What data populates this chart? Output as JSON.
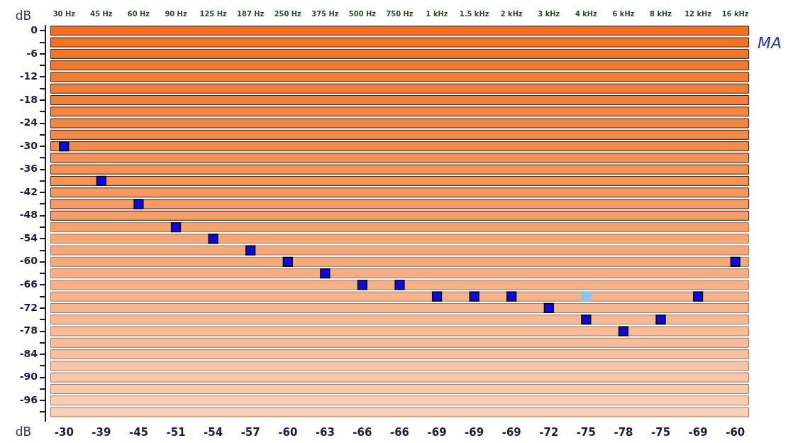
{
  "chart_data": {
    "type": "scatter",
    "ylabel": "dB",
    "categories": [
      "30 Hz",
      "45 Hz",
      "60 Hz",
      "90 Hz",
      "125 Hz",
      "187 Hz",
      "250 Hz",
      "375 Hz",
      "500 Hz",
      "750 Hz",
      "1 kHz",
      "1.5 kHz",
      "2 kHz",
      "3 kHz",
      "4 kHz",
      "6 kHz",
      "8 kHz",
      "12 kHz",
      "16 kHz"
    ],
    "series": [
      {
        "color": "#0a0ae6",
        "values": [
          -30,
          -39,
          -45,
          -51,
          -54,
          -57,
          -60,
          -63,
          -66,
          -66,
          -69,
          -69,
          -69,
          -72,
          -75,
          -78,
          -75,
          -69,
          -60
        ],
        "data_labels": true
      },
      {
        "color": "#88c4f0",
        "values": [
          null,
          null,
          null,
          null,
          null,
          null,
          null,
          null,
          null,
          null,
          null,
          null,
          null,
          null,
          -69,
          null,
          null,
          null,
          null
        ]
      }
    ],
    "ylim": [
      -101.5,
      1.5
    ],
    "yticks": [
      0,
      {
        "value": -3,
        "label": null
      },
      -6,
      {
        "value": -9,
        "label": null
      },
      -12,
      {
        "value": -15,
        "label": null
      },
      -18,
      {
        "value": -21,
        "label": null
      },
      -24,
      {
        "value": -27,
        "label": null
      },
      -30,
      {
        "value": -33,
        "label": null
      },
      -36,
      {
        "value": -39,
        "label": null
      },
      -42,
      {
        "value": -45,
        "label": null
      },
      -48,
      {
        "value": -51,
        "label": null
      },
      -54,
      {
        "value": -57,
        "label": null
      },
      -60,
      {
        "value": -63,
        "label": null
      },
      -66,
      {
        "value": -69,
        "label": null
      },
      -72,
      {
        "value": -75,
        "label": null
      },
      -78,
      {
        "value": -81,
        "label": null
      },
      -84,
      {
        "value": -87,
        "label": null
      },
      -90,
      {
        "value": -93,
        "label": null
      },
      -96,
      {
        "value": -99,
        "label": null
      }
    ],
    "marker": "square",
    "legend": false,
    "bands": [
      {
        "axis": "y",
        "from": -1.2,
        "to": 1.2,
        "color": "#f07020"
      },
      {
        "axis": "y",
        "from": -4.2,
        "to": -1.8,
        "color": "#f07325"
      },
      {
        "axis": "y",
        "from": -7.2,
        "to": -4.8,
        "color": "#f07629"
      },
      {
        "axis": "y",
        "from": -10.2,
        "to": -7.8,
        "color": "#f0792e"
      },
      {
        "axis": "y",
        "from": -13.2,
        "to": -10.8,
        "color": "#f17c32"
      },
      {
        "axis": "y",
        "from": -16.2,
        "to": -13.8,
        "color": "#f17f37"
      },
      {
        "axis": "y",
        "from": -19.2,
        "to": -16.8,
        "color": "#f1813c"
      },
      {
        "axis": "y",
        "from": -22.2,
        "to": -19.8,
        "color": "#f28440"
      },
      {
        "axis": "y",
        "from": -25.2,
        "to": -22.8,
        "color": "#f28745"
      },
      {
        "axis": "y",
        "from": -28.2,
        "to": -25.8,
        "color": "#f28a49"
      },
      {
        "axis": "y",
        "from": -31.2,
        "to": -28.8,
        "color": "#f28d4e"
      },
      {
        "axis": "y",
        "from": -34.2,
        "to": -31.8,
        "color": "#f39053"
      },
      {
        "axis": "y",
        "from": -37.2,
        "to": -34.8,
        "color": "#f39357"
      },
      {
        "axis": "y",
        "from": -40.2,
        "to": -37.8,
        "color": "#f3965c"
      },
      {
        "axis": "y",
        "from": -43.2,
        "to": -40.8,
        "color": "#f49960"
      },
      {
        "axis": "y",
        "from": -46.2,
        "to": -43.8,
        "color": "#f49c65"
      },
      {
        "axis": "y",
        "from": -49.2,
        "to": -46.8,
        "color": "#f49f6a"
      },
      {
        "axis": "y",
        "from": -52.2,
        "to": -49.8,
        "color": "#f4a16e"
      },
      {
        "axis": "y",
        "from": -55.2,
        "to": -52.8,
        "color": "#f5a473"
      },
      {
        "axis": "y",
        "from": -58.2,
        "to": -55.8,
        "color": "#f5a778"
      },
      {
        "axis": "y",
        "from": -61.2,
        "to": -58.8,
        "color": "#f5aa7c"
      },
      {
        "axis": "y",
        "from": -64.2,
        "to": -61.8,
        "color": "#f5ad81"
      },
      {
        "axis": "y",
        "from": -67.2,
        "to": -64.8,
        "color": "#f6b085"
      },
      {
        "axis": "y",
        "from": -70.2,
        "to": -67.8,
        "color": "#f6b38a"
      },
      {
        "axis": "y",
        "from": -73.2,
        "to": -70.8,
        "color": "#f6b68f"
      },
      {
        "axis": "y",
        "from": -76.2,
        "to": -73.8,
        "color": "#f7b993"
      },
      {
        "axis": "y",
        "from": -79.2,
        "to": -76.8,
        "color": "#f7bc98"
      },
      {
        "axis": "y",
        "from": -82.2,
        "to": -79.8,
        "color": "#f7be9c"
      },
      {
        "axis": "y",
        "from": -85.2,
        "to": -82.8,
        "color": "#f7c1a1"
      },
      {
        "axis": "y",
        "from": -88.2,
        "to": -85.8,
        "color": "#f8c4a6"
      },
      {
        "axis": "y",
        "from": -91.2,
        "to": -88.8,
        "color": "#f8c7aa"
      },
      {
        "axis": "y",
        "from": -94.2,
        "to": -91.8,
        "color": "#f8caaf"
      },
      {
        "axis": "y",
        "from": -97.2,
        "to": -94.8,
        "color": "#f8cdb3"
      },
      {
        "axis": "y",
        "from": -100.2,
        "to": -97.8,
        "color": "#f8d0b8"
      }
    ],
    "annotations": [
      "dB",
      "MA"
    ]
  }
}
